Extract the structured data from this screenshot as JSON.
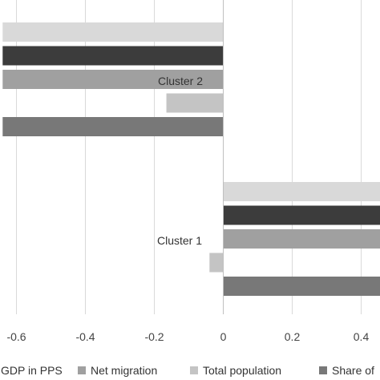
{
  "chart_data": {
    "type": "bar",
    "orientation": "horizontal",
    "categories": [
      "Cluster 2",
      "Cluster 1"
    ],
    "series": [
      {
        "name": "",
        "values": [
          -0.64,
          0.46
        ],
        "color": "#d9d9d9"
      },
      {
        "name": "",
        "values": [
          -0.64,
          0.46
        ],
        "color": "#3c3c3c"
      },
      {
        "name": "GDP in PPS",
        "values": [
          -0.64,
          0.46
        ],
        "color": "#a0a0a0"
      },
      {
        "name": "Net migration",
        "values": [
          -0.165,
          -0.04
        ],
        "color": "#a0a0a0"
      },
      {
        "name": "Total population",
        "values": [
          -0.64,
          0.46
        ],
        "color": "#c4c4c4"
      },
      {
        "name": "Share of",
        "values": [
          -0.64,
          0.46
        ],
        "color": "#787878"
      }
    ],
    "bar_colors_top_to_bottom": [
      "#d9d9d9",
      "#3c3c3c",
      "#a0a0a0",
      "#c4c4c4",
      "#787878"
    ],
    "xticks": [
      "-0.6",
      "-0.4",
      "-0.2",
      "0",
      "0.2",
      "0.4"
    ],
    "xtick_values": [
      -0.6,
      -0.4,
      -0.2,
      0,
      0.2,
      0.4
    ],
    "xlim": [
      -0.64,
      0.46
    ],
    "grid": "vertical",
    "legend_placement": "bottom",
    "legend": [
      {
        "label": "GDP in PPS",
        "color": "#6e6e6e"
      },
      {
        "label": "Net migration",
        "color": "#a0a0a0"
      },
      {
        "label": "Total population",
        "color": "#c4c4c4"
      },
      {
        "label": "Share of",
        "color": "#787878"
      }
    ]
  }
}
